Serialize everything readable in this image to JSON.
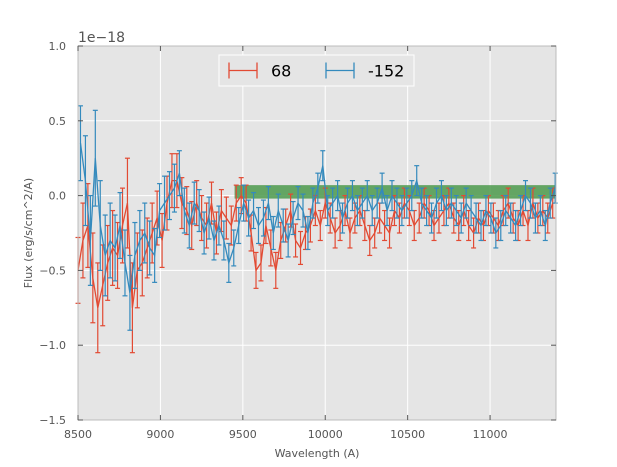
{
  "chart_data": {
    "type": "line",
    "title": "",
    "xlabel": "Wavelength (A)",
    "ylabel": "Flux (erg/s/cm^2/A)",
    "y_offset_label": "1e−18",
    "xlim": [
      8500,
      11400
    ],
    "ylim": [
      -1.5,
      1.0
    ],
    "x_ticks": [
      8500,
      9000,
      9500,
      10000,
      10500,
      11000
    ],
    "x_tick_labels": [
      "8500",
      "9000",
      "9500",
      "10000",
      "10500",
      "11000"
    ],
    "y_ticks": [
      -1.5,
      -1.0,
      -0.5,
      0.0,
      0.5,
      1.0
    ],
    "y_tick_labels": [
      "−1.5",
      "−1.0",
      "−0.5",
      "0.0",
      "0.5",
      "1.0"
    ],
    "grid": true,
    "background": "#e5e5e5",
    "legend_position": "upper-center",
    "band": {
      "x_start": 9450,
      "x_end": 11400,
      "y_low": -0.02,
      "y_high": 0.07,
      "color": "#4c9a4c"
    },
    "series": [
      {
        "name": "68",
        "color": "#e24a33",
        "x": [
          8500,
          8530,
          8560,
          8590,
          8620,
          8650,
          8680,
          8710,
          8740,
          8770,
          8800,
          8830,
          8860,
          8890,
          8920,
          8950,
          8980,
          9010,
          9040,
          9070,
          9100,
          9130,
          9160,
          9190,
          9220,
          9250,
          9280,
          9310,
          9340,
          9370,
          9400,
          9430,
          9460,
          9490,
          9520,
          9550,
          9580,
          9610,
          9640,
          9670,
          9700,
          9730,
          9760,
          9790,
          9820,
          9850,
          9880,
          9910,
          9940,
          9970,
          10000,
          10030,
          10060,
          10090,
          10120,
          10150,
          10180,
          10210,
          10240,
          10270,
          10300,
          10330,
          10360,
          10390,
          10420,
          10450,
          10480,
          10510,
          10540,
          10570,
          10600,
          10630,
          10660,
          10690,
          10720,
          10750,
          10780,
          10810,
          10840,
          10870,
          10900,
          10930,
          10960,
          10990,
          11020,
          11050,
          11080,
          11110,
          11140,
          11170,
          11200,
          11230,
          11260,
          11290,
          11320,
          11350,
          11380
        ],
        "y": [
          -0.5,
          -0.3,
          -0.2,
          -0.55,
          -0.75,
          -0.6,
          -0.45,
          -0.35,
          -0.4,
          -0.2,
          -0.05,
          -0.75,
          -0.5,
          -0.45,
          -0.35,
          -0.25,
          -0.15,
          -0.3,
          -0.05,
          0.1,
          0.1,
          -0.05,
          -0.1,
          -0.2,
          -0.05,
          -0.15,
          -0.2,
          -0.05,
          -0.25,
          -0.1,
          -0.15,
          -0.2,
          -0.05,
          0.0,
          -0.05,
          -0.25,
          -0.5,
          -0.45,
          -0.2,
          -0.35,
          -0.5,
          -0.3,
          -0.2,
          -0.1,
          -0.3,
          -0.35,
          -0.25,
          -0.2,
          -0.1,
          -0.2,
          -0.05,
          -0.15,
          -0.25,
          -0.2,
          -0.1,
          -0.25,
          -0.15,
          -0.1,
          -0.2,
          -0.3,
          -0.25,
          -0.15,
          -0.2,
          -0.25,
          -0.1,
          -0.15,
          -0.05,
          -0.1,
          -0.2,
          -0.15,
          -0.05,
          -0.1,
          -0.2,
          -0.15,
          -0.1,
          -0.05,
          -0.15,
          -0.2,
          -0.1,
          -0.2,
          -0.25,
          -0.15,
          -0.2,
          -0.1,
          -0.15,
          -0.2,
          -0.1,
          -0.05,
          -0.15,
          -0.2,
          -0.1,
          -0.2,
          -0.05,
          -0.15,
          -0.1,
          -0.15,
          -0.05
        ],
        "err": [
          0.22,
          0.25,
          0.28,
          0.3,
          0.3,
          0.27,
          0.25,
          0.25,
          0.22,
          0.25,
          0.3,
          0.3,
          0.25,
          0.22,
          0.2,
          0.2,
          0.18,
          0.18,
          0.18,
          0.18,
          0.18,
          0.17,
          0.16,
          0.16,
          0.15,
          0.15,
          0.15,
          0.14,
          0.14,
          0.14,
          0.14,
          0.13,
          0.12,
          0.12,
          0.12,
          0.12,
          0.12,
          0.12,
          0.12,
          0.12,
          0.12,
          0.12,
          0.11,
          0.11,
          0.11,
          0.11,
          0.11,
          0.11,
          0.1,
          0.1,
          0.1,
          0.1,
          0.1,
          0.1,
          0.1,
          0.1,
          0.1,
          0.1,
          0.1,
          0.1,
          0.1,
          0.1,
          0.1,
          0.1,
          0.1,
          0.1,
          0.1,
          0.1,
          0.1,
          0.1,
          0.1,
          0.1,
          0.1,
          0.1,
          0.1,
          0.1,
          0.1,
          0.1,
          0.1,
          0.1,
          0.1,
          0.1,
          0.1,
          0.1,
          0.1,
          0.1,
          0.1,
          0.1,
          0.1,
          0.1,
          0.1,
          0.1,
          0.1,
          0.1,
          0.1,
          0.1,
          0.1
        ]
      },
      {
        "name": "-152",
        "color": "#348abd",
        "x": [
          8515,
          8545,
          8575,
          8605,
          8635,
          8665,
          8695,
          8725,
          8755,
          8785,
          8815,
          8845,
          8875,
          8905,
          8935,
          8965,
          8995,
          9025,
          9055,
          9085,
          9115,
          9145,
          9175,
          9205,
          9235,
          9265,
          9295,
          9325,
          9355,
          9385,
          9415,
          9445,
          9475,
          9505,
          9535,
          9565,
          9595,
          9625,
          9655,
          9685,
          9715,
          9745,
          9775,
          9805,
          9835,
          9865,
          9895,
          9925,
          9955,
          9985,
          10015,
          10045,
          10075,
          10105,
          10135,
          10165,
          10195,
          10225,
          10255,
          10285,
          10315,
          10345,
          10375,
          10405,
          10435,
          10465,
          10495,
          10525,
          10555,
          10585,
          10615,
          10645,
          10675,
          10705,
          10735,
          10765,
          10795,
          10825,
          10855,
          10885,
          10915,
          10945,
          10975,
          11005,
          11035,
          11065,
          11095,
          11125,
          11155,
          11185,
          11215,
          11245,
          11275,
          11305,
          11335,
          11365,
          11395
        ],
        "y": [
          0.35,
          0.1,
          -0.3,
          0.25,
          -0.2,
          -0.4,
          -0.3,
          -0.35,
          -0.2,
          -0.45,
          -0.65,
          -0.4,
          -0.3,
          -0.25,
          -0.35,
          -0.4,
          -0.1,
          -0.05,
          0.0,
          0.05,
          0.15,
          -0.1,
          -0.2,
          -0.05,
          -0.1,
          -0.25,
          -0.15,
          -0.3,
          -0.2,
          -0.3,
          -0.45,
          -0.35,
          -0.2,
          -0.05,
          -0.15,
          -0.1,
          -0.2,
          -0.15,
          -0.05,
          -0.25,
          -0.1,
          -0.2,
          -0.3,
          -0.15,
          -0.05,
          -0.1,
          -0.25,
          -0.05,
          0.05,
          0.2,
          -0.1,
          -0.05,
          0.0,
          -0.15,
          -0.05,
          0.0,
          -0.1,
          -0.05,
          0.0,
          -0.1,
          -0.05,
          0.05,
          -0.1,
          0.0,
          -0.05,
          -0.1,
          -0.05,
          0.0,
          0.1,
          -0.05,
          -0.1,
          -0.15,
          -0.05,
          0.0,
          -0.1,
          -0.05,
          -0.1,
          -0.15,
          -0.05,
          -0.1,
          -0.15,
          -0.2,
          -0.1,
          -0.15,
          -0.25,
          -0.2,
          -0.1,
          -0.15,
          -0.2,
          -0.1,
          0.0,
          -0.05,
          -0.15,
          -0.1,
          -0.2,
          -0.05,
          0.05
        ],
        "err": [
          0.25,
          0.3,
          0.3,
          0.32,
          0.3,
          0.27,
          0.25,
          0.22,
          0.22,
          0.22,
          0.25,
          0.22,
          0.2,
          0.2,
          0.18,
          0.18,
          0.18,
          0.18,
          0.16,
          0.16,
          0.15,
          0.15,
          0.15,
          0.14,
          0.14,
          0.14,
          0.14,
          0.13,
          0.13,
          0.13,
          0.13,
          0.12,
          0.12,
          0.12,
          0.12,
          0.12,
          0.12,
          0.12,
          0.11,
          0.11,
          0.11,
          0.11,
          0.11,
          0.11,
          0.11,
          0.11,
          0.11,
          0.1,
          0.1,
          0.1,
          0.1,
          0.1,
          0.1,
          0.1,
          0.1,
          0.1,
          0.1,
          0.1,
          0.1,
          0.1,
          0.1,
          0.1,
          0.1,
          0.1,
          0.1,
          0.1,
          0.1,
          0.1,
          0.1,
          0.1,
          0.1,
          0.1,
          0.1,
          0.1,
          0.1,
          0.1,
          0.1,
          0.1,
          0.1,
          0.1,
          0.1,
          0.1,
          0.1,
          0.1,
          0.1,
          0.1,
          0.1,
          0.1,
          0.1,
          0.1,
          0.1,
          0.1,
          0.1,
          0.1,
          0.1,
          0.1,
          0.1
        ]
      }
    ],
    "legend": [
      "68",
      "-152"
    ]
  }
}
